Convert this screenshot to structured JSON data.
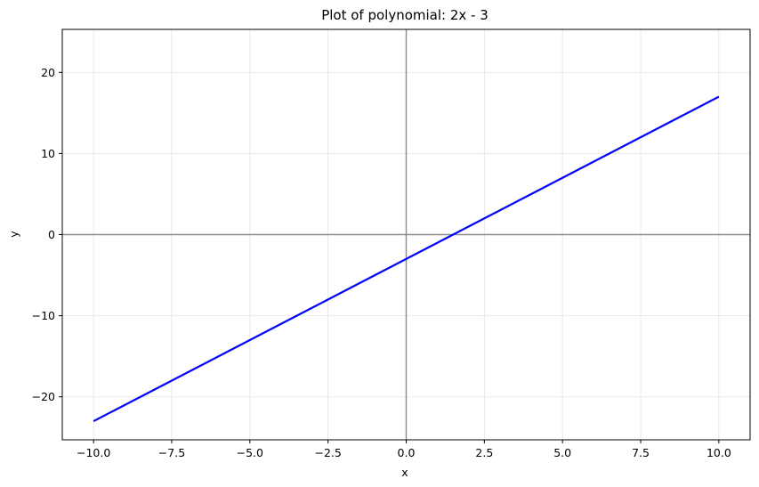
{
  "chart_data": {
    "type": "line",
    "title": "Plot of polynomial: 2x - 3",
    "xlabel": "x",
    "ylabel": "y",
    "xlim": [
      -11,
      11
    ],
    "ylim": [
      -25.3,
      25.3
    ],
    "x_ticks": [
      -10.0,
      -7.5,
      -5.0,
      -2.5,
      0.0,
      2.5,
      5.0,
      7.5,
      10.0
    ],
    "x_tick_labels": [
      "−10.0",
      "−7.5",
      "−5.0",
      "−2.5",
      "0.0",
      "2.5",
      "5.0",
      "7.5",
      "10.0"
    ],
    "y_ticks": [
      -20,
      -10,
      0,
      10,
      20
    ],
    "y_tick_labels": [
      "−20",
      "−10",
      "0",
      "10",
      "20"
    ],
    "grid": true,
    "reference_lines": {
      "x": 0,
      "y": 0
    },
    "series": [
      {
        "color": "#0000ff",
        "x": [
          -10,
          10
        ],
        "y": [
          -23,
          17
        ]
      }
    ],
    "colors": {
      "line": "#0000ff",
      "grid": "#e3e3e3",
      "reference": "#8c8c8c",
      "spine": "#000000"
    }
  }
}
